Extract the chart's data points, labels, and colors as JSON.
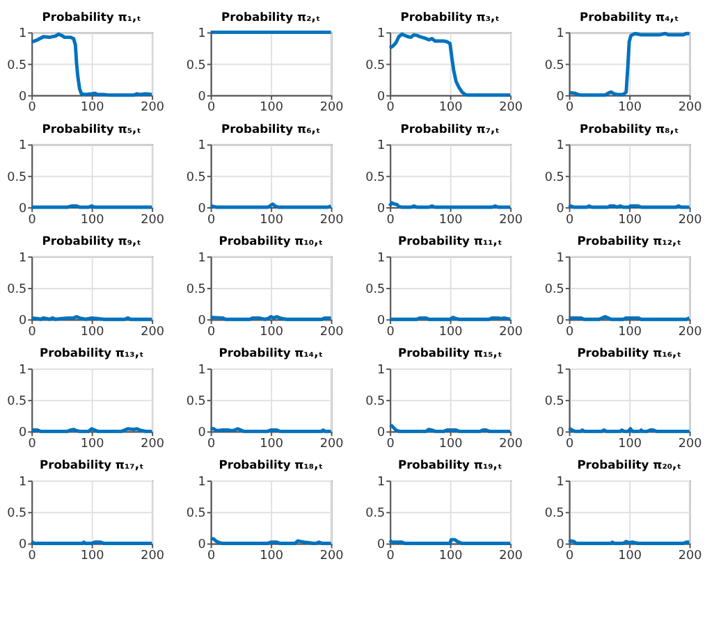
{
  "chart_data": [
    {
      "type": "line",
      "title": "Probability π₁,ₜ",
      "color": "#0072bd",
      "xlim": [
        0,
        200
      ],
      "ylim": [
        0,
        1
      ],
      "xticks": [
        0,
        100,
        200
      ],
      "yticks": [
        0,
        0.5,
        1
      ],
      "grid": true,
      "x": [
        0,
        5,
        10,
        20,
        30,
        40,
        45,
        50,
        55,
        65,
        70,
        73,
        75,
        77,
        80,
        83,
        90,
        100,
        105,
        110,
        120,
        130,
        170,
        175,
        180,
        190,
        200
      ],
      "values": [
        0.85,
        0.86,
        0.88,
        0.93,
        0.92,
        0.94,
        0.97,
        0.95,
        0.92,
        0.92,
        0.9,
        0.8,
        0.5,
        0.3,
        0.1,
        0.02,
        0.01,
        0.02,
        0.03,
        0.01,
        0.01,
        0,
        0,
        0.02,
        0.01,
        0.02,
        0.01
      ]
    },
    {
      "type": "line",
      "title": "Probability π₂,ₜ",
      "color": "#0072bd",
      "xlim": [
        0,
        200
      ],
      "ylim": [
        0,
        1
      ],
      "xticks": [
        0,
        100,
        200
      ],
      "yticks": [
        0,
        0.5,
        1
      ],
      "grid": true,
      "x": [
        0,
        50,
        100,
        150,
        200
      ],
      "values": [
        1,
        1,
        1,
        1,
        1
      ]
    },
    {
      "type": "line",
      "title": "Probability π₃,ₜ",
      "color": "#0072bd",
      "xlim": [
        0,
        200
      ],
      "ylim": [
        0,
        1
      ],
      "xticks": [
        0,
        100,
        200
      ],
      "yticks": [
        0,
        0.5,
        1
      ],
      "grid": true,
      "x": [
        0,
        5,
        10,
        15,
        20,
        25,
        30,
        35,
        40,
        45,
        50,
        60,
        65,
        70,
        75,
        80,
        90,
        95,
        100,
        103,
        106,
        110,
        115,
        120,
        125,
        130,
        200
      ],
      "values": [
        0.75,
        0.78,
        0.83,
        0.93,
        0.97,
        0.95,
        0.93,
        0.92,
        0.96,
        0.95,
        0.93,
        0.9,
        0.88,
        0.9,
        0.86,
        0.86,
        0.86,
        0.85,
        0.82,
        0.6,
        0.4,
        0.22,
        0.12,
        0.05,
        0.01,
        0,
        0
      ]
    },
    {
      "type": "line",
      "title": "Probability π₄,ₜ",
      "color": "#0072bd",
      "xlim": [
        0,
        200
      ],
      "ylim": [
        0,
        1
      ],
      "xticks": [
        0,
        100,
        200
      ],
      "yticks": [
        0,
        0.5,
        1
      ],
      "grid": true,
      "x": [
        0,
        10,
        15,
        20,
        60,
        65,
        70,
        75,
        80,
        90,
        95,
        98,
        100,
        103,
        110,
        120,
        150,
        160,
        165,
        190,
        195,
        200
      ],
      "values": [
        0.04,
        0.03,
        0.01,
        0,
        0,
        0.03,
        0.05,
        0.02,
        0.01,
        0.01,
        0.05,
        0.5,
        0.85,
        0.95,
        0.98,
        0.96,
        0.96,
        0.98,
        0.96,
        0.96,
        0.98,
        0.98
      ]
    },
    {
      "type": "line",
      "title": "Probability π₅,ₜ",
      "color": "#0072bd",
      "xlim": [
        0,
        200
      ],
      "ylim": [
        0,
        1
      ],
      "xticks": [
        0,
        100,
        200
      ],
      "yticks": [
        0,
        0.5,
        1
      ],
      "grid": true,
      "x": [
        0,
        60,
        68,
        75,
        80,
        95,
        100,
        105,
        200
      ],
      "values": [
        0,
        0,
        0.02,
        0.02,
        0,
        0,
        0.02,
        0,
        0
      ]
    },
    {
      "type": "line",
      "title": "Probability π₆,ₜ",
      "color": "#0072bd",
      "xlim": [
        0,
        200
      ],
      "ylim": [
        0,
        1
      ],
      "xticks": [
        0,
        100,
        200
      ],
      "yticks": [
        0,
        0.5,
        1
      ],
      "grid": true,
      "x": [
        0,
        5,
        10,
        95,
        100,
        103,
        107,
        112,
        195,
        200
      ],
      "values": [
        0.02,
        0.01,
        0,
        0,
        0.03,
        0.05,
        0.02,
        0,
        0,
        0.02
      ]
    },
    {
      "type": "line",
      "title": "Probability π₇,ₜ",
      "color": "#0072bd",
      "xlim": [
        0,
        200
      ],
      "ylim": [
        0,
        1
      ],
      "xticks": [
        0,
        100,
        200
      ],
      "yticks": [
        0,
        0.5,
        1
      ],
      "grid": true,
      "x": [
        0,
        3,
        8,
        12,
        15,
        20,
        35,
        40,
        45,
        65,
        70,
        75,
        170,
        175,
        180,
        200
      ],
      "values": [
        0.02,
        0.07,
        0.05,
        0.04,
        0.01,
        0,
        0,
        0.02,
        0,
        0,
        0.02,
        0,
        0,
        0.02,
        0,
        0
      ]
    },
    {
      "type": "line",
      "title": "Probability π₈,ₜ",
      "color": "#0072bd",
      "xlim": [
        0,
        200
      ],
      "ylim": [
        0,
        1
      ],
      "xticks": [
        0,
        100,
        200
      ],
      "yticks": [
        0,
        0.5,
        1
      ],
      "grid": true,
      "x": [
        0,
        3,
        8,
        30,
        33,
        38,
        65,
        68,
        75,
        80,
        85,
        90,
        100,
        102,
        115,
        120,
        178,
        182,
        186,
        200
      ],
      "values": [
        0,
        0.02,
        0,
        0,
        0.02,
        0,
        0,
        0.02,
        0.02,
        0,
        0.02,
        0,
        0,
        0.02,
        0.02,
        0,
        0,
        0.02,
        0,
        0
      ]
    },
    {
      "type": "line",
      "title": "Probability π₉,ₜ",
      "color": "#0072bd",
      "xlim": [
        0,
        200
      ],
      "ylim": [
        0,
        1
      ],
      "xticks": [
        0,
        100,
        200
      ],
      "yticks": [
        0,
        0.5,
        1
      ],
      "grid": true,
      "x": [
        0,
        10,
        15,
        20,
        25,
        30,
        35,
        40,
        50,
        60,
        70,
        75,
        80,
        90,
        100,
        110,
        120,
        155,
        160,
        165,
        200
      ],
      "values": [
        0.02,
        0.01,
        0,
        0.02,
        0.01,
        0,
        0.02,
        0,
        0.01,
        0.02,
        0.02,
        0.04,
        0.02,
        0,
        0.02,
        0.01,
        0,
        0,
        0.02,
        0,
        0
      ]
    },
    {
      "type": "line",
      "title": "Probability π₁₀,ₜ",
      "color": "#0072bd",
      "xlim": [
        0,
        200
      ],
      "ylim": [
        0,
        1
      ],
      "xticks": [
        0,
        100,
        200
      ],
      "yticks": [
        0,
        0.5,
        1
      ],
      "grid": true,
      "x": [
        0,
        20,
        25,
        65,
        70,
        80,
        90,
        95,
        100,
        105,
        110,
        115,
        125,
        185,
        190,
        200
      ],
      "values": [
        0.03,
        0.02,
        0,
        0,
        0.02,
        0.02,
        0,
        0.01,
        0.04,
        0.02,
        0.04,
        0.02,
        0,
        0,
        0.02,
        0.02
      ]
    },
    {
      "type": "line",
      "title": "Probability π₁₁,ₜ",
      "color": "#0072bd",
      "xlim": [
        0,
        200
      ],
      "ylim": [
        0,
        1
      ],
      "xticks": [
        0,
        100,
        200
      ],
      "yticks": [
        0,
        0.5,
        1
      ],
      "grid": true,
      "x": [
        0,
        45,
        50,
        60,
        65,
        100,
        105,
        110,
        115,
        165,
        170,
        180,
        185,
        190,
        200
      ],
      "values": [
        0,
        0,
        0.02,
        0.02,
        0,
        0,
        0.03,
        0.01,
        0,
        0,
        0.02,
        0.02,
        0.01,
        0.02,
        0
      ]
    },
    {
      "type": "line",
      "title": "Probability π₁₂,ₜ",
      "color": "#0072bd",
      "xlim": [
        0,
        200
      ],
      "ylim": [
        0,
        1
      ],
      "xticks": [
        0,
        100,
        200
      ],
      "yticks": [
        0,
        0.5,
        1
      ],
      "grid": true,
      "x": [
        0,
        20,
        25,
        50,
        60,
        65,
        70,
        90,
        95,
        115,
        120,
        195,
        200
      ],
      "values": [
        0.02,
        0.02,
        0,
        0,
        0.04,
        0.02,
        0,
        0,
        0.02,
        0.02,
        0,
        0,
        0.02
      ]
    },
    {
      "type": "line",
      "title": "Probability π₁₃,ₜ",
      "color": "#0072bd",
      "xlim": [
        0,
        200
      ],
      "ylim": [
        0,
        1
      ],
      "xticks": [
        0,
        100,
        200
      ],
      "yticks": [
        0,
        0.5,
        1
      ],
      "grid": true,
      "x": [
        0,
        10,
        15,
        60,
        65,
        70,
        75,
        80,
        95,
        100,
        105,
        110,
        150,
        155,
        160,
        170,
        175,
        180,
        190,
        200
      ],
      "values": [
        0.02,
        0.02,
        0,
        0,
        0.02,
        0.03,
        0.01,
        0,
        0,
        0.04,
        0.02,
        0,
        0,
        0.02,
        0.04,
        0.03,
        0.04,
        0.02,
        0,
        0
      ]
    },
    {
      "type": "line",
      "title": "Probability π₁₄,ₜ",
      "color": "#0072bd",
      "xlim": [
        0,
        200
      ],
      "ylim": [
        0,
        1
      ],
      "xticks": [
        0,
        100,
        200
      ],
      "yticks": [
        0,
        0.5,
        1
      ],
      "grid": true,
      "x": [
        0,
        5,
        10,
        20,
        30,
        35,
        40,
        45,
        50,
        55,
        95,
        100,
        110,
        115,
        185,
        187,
        190,
        200
      ],
      "values": [
        0.05,
        0.04,
        0.01,
        0.02,
        0.02,
        0.01,
        0.02,
        0.04,
        0.02,
        0,
        0,
        0.02,
        0.02,
        0,
        0,
        0.02,
        0,
        0
      ]
    },
    {
      "type": "line",
      "title": "Probability π₁₅,ₜ",
      "color": "#0072bd",
      "xlim": [
        0,
        200
      ],
      "ylim": [
        0,
        1
      ],
      "xticks": [
        0,
        100,
        200
      ],
      "yticks": [
        0,
        0.5,
        1
      ],
      "grid": true,
      "x": [
        0,
        3,
        6,
        10,
        15,
        60,
        65,
        70,
        75,
        90,
        95,
        110,
        115,
        150,
        155,
        160,
        165,
        200
      ],
      "values": [
        0.1,
        0.09,
        0.06,
        0.02,
        0,
        0,
        0.03,
        0.02,
        0,
        0,
        0.02,
        0.02,
        0,
        0,
        0.02,
        0.02,
        0,
        0
      ]
    },
    {
      "type": "line",
      "title": "Probability π₁₆,ₜ",
      "color": "#0072bd",
      "xlim": [
        0,
        200
      ],
      "ylim": [
        0,
        1
      ],
      "xticks": [
        0,
        100,
        200
      ],
      "yticks": [
        0,
        0.5,
        1
      ],
      "grid": true,
      "x": [
        0,
        5,
        10,
        20,
        22,
        25,
        55,
        58,
        62,
        85,
        88,
        91,
        98,
        102,
        106,
        118,
        120,
        122,
        130,
        135,
        140,
        145,
        200
      ],
      "values": [
        0.05,
        0.02,
        0,
        0,
        0.02,
        0,
        0,
        0.02,
        0,
        0,
        0.02,
        0,
        0,
        0.04,
        0,
        0,
        0.02,
        0,
        0,
        0.02,
        0.02,
        0,
        0
      ]
    },
    {
      "type": "line",
      "title": "Probability π₁₇,ₜ",
      "color": "#0072bd",
      "xlim": [
        0,
        200
      ],
      "ylim": [
        0,
        1
      ],
      "xticks": [
        0,
        100,
        200
      ],
      "yticks": [
        0,
        0.5,
        1
      ],
      "grid": true,
      "x": [
        0,
        5,
        85,
        87,
        90,
        100,
        105,
        115,
        120,
        200
      ],
      "values": [
        0.03,
        0,
        0,
        0.02,
        0,
        0,
        0.02,
        0.02,
        0,
        0
      ]
    },
    {
      "type": "line",
      "title": "Probability π₁₈,ₜ",
      "color": "#0072bd",
      "xlim": [
        0,
        200
      ],
      "ylim": [
        0,
        1
      ],
      "xticks": [
        0,
        100,
        200
      ],
      "yticks": [
        0,
        0.5,
        1
      ],
      "grid": true,
      "x": [
        0,
        5,
        10,
        15,
        20,
        95,
        100,
        110,
        115,
        140,
        145,
        150,
        155,
        165,
        170,
        175,
        180,
        185,
        200
      ],
      "values": [
        0.08,
        0.07,
        0.03,
        0.01,
        0,
        0,
        0.02,
        0.02,
        0,
        0,
        0.04,
        0.03,
        0.02,
        0.01,
        0,
        0,
        0.02,
        0,
        0
      ]
    },
    {
      "type": "line",
      "title": "Probability π₁₉,ₜ",
      "color": "#0072bd",
      "xlim": [
        0,
        200
      ],
      "ylim": [
        0,
        1
      ],
      "xticks": [
        0,
        100,
        200
      ],
      "yticks": [
        0,
        0.5,
        1
      ],
      "grid": true,
      "x": [
        0,
        3,
        20,
        25,
        100,
        102,
        108,
        112,
        120,
        200
      ],
      "values": [
        0.05,
        0.02,
        0.02,
        0,
        0,
        0.06,
        0.06,
        0.03,
        0,
        0
      ]
    },
    {
      "type": "line",
      "title": "Probability π₂₀,ₜ",
      "color": "#0072bd",
      "xlim": [
        0,
        200
      ],
      "ylim": [
        0,
        1
      ],
      "xticks": [
        0,
        100,
        200
      ],
      "yticks": [
        0,
        0.5,
        1
      ],
      "grid": true,
      "x": [
        0,
        3,
        8,
        12,
        70,
        72,
        75,
        90,
        95,
        100,
        105,
        110,
        115,
        190,
        195,
        200
      ],
      "values": [
        0.02,
        0.04,
        0.03,
        0,
        0,
        0.02,
        0,
        0,
        0.03,
        0.01,
        0.02,
        0.01,
        0,
        0,
        0.02,
        0.02
      ]
    }
  ]
}
